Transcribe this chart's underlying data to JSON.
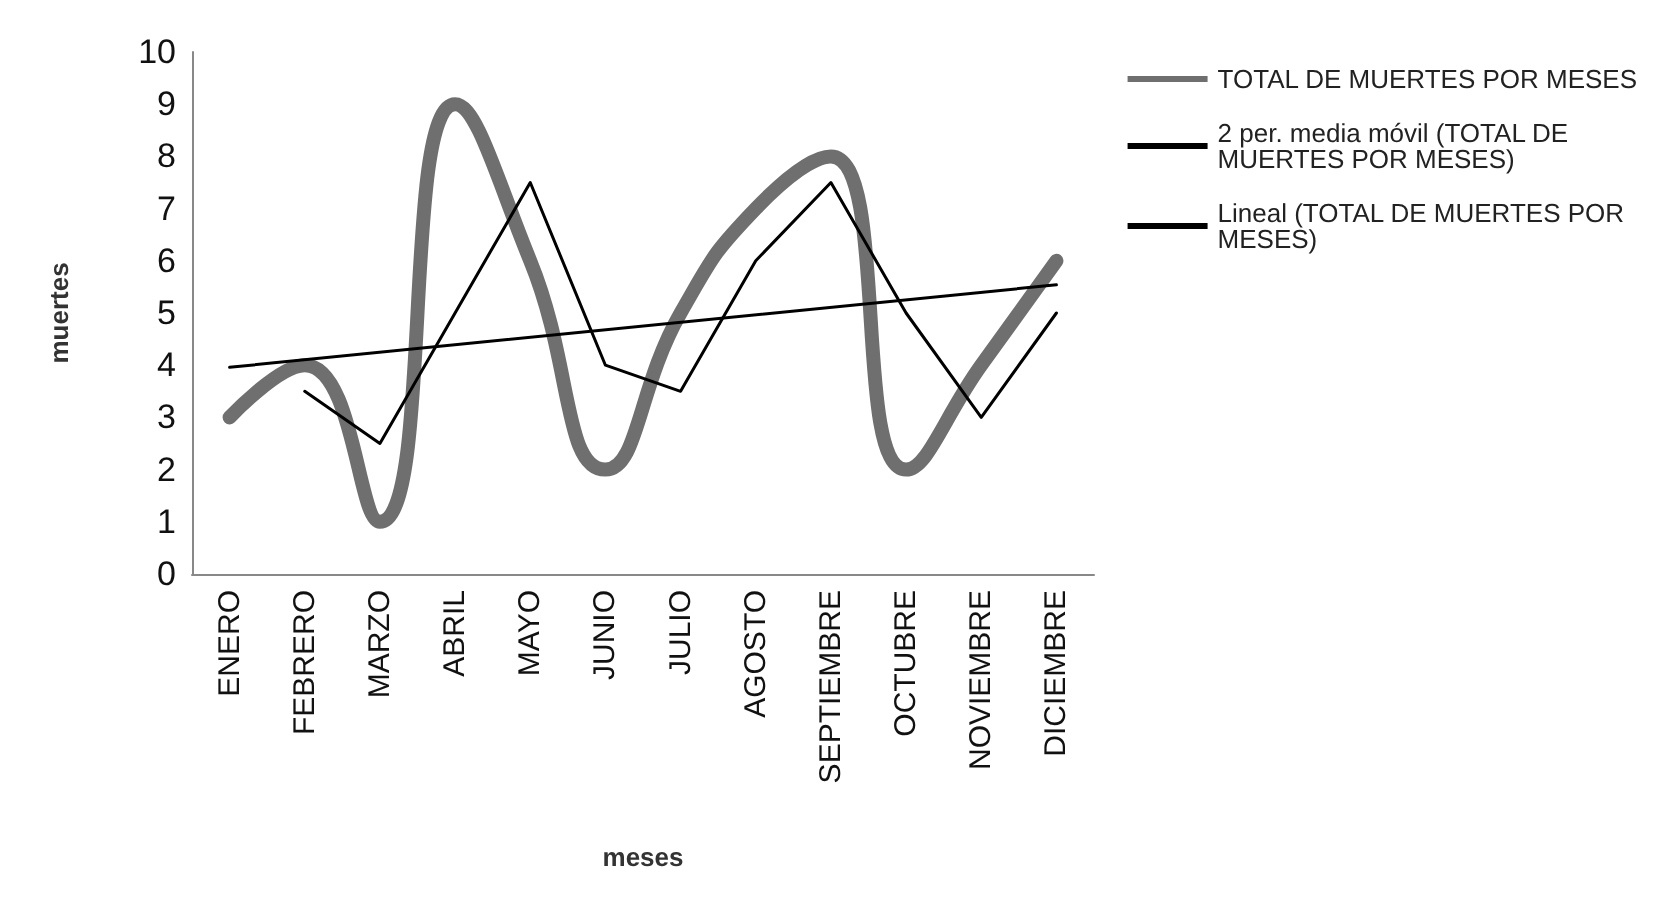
{
  "chart_data": {
    "type": "line",
    "xlabel": "meses",
    "ylabel": "muertes",
    "categories": [
      "ENERO",
      "FEBRERO",
      "MARZO",
      "ABRIL",
      "MAYO",
      "JUNIO",
      "JULIO",
      "AGOSTO",
      "SEPTIEMBRE",
      "OCTUBRE",
      "NOVIEMBRE",
      "DICIEMBRE"
    ],
    "series": [
      {
        "name": "TOTAL DE MUERTES POR MESES",
        "color": "#6f6f6f",
        "values": [
          3,
          4,
          1,
          9,
          6,
          2,
          5,
          7,
          8,
          2,
          4,
          6
        ]
      },
      {
        "name": "2 per. media móvil (TOTAL DE MUERTES POR MESES)",
        "color": "#000000",
        "values": [
          null,
          3.5,
          2.5,
          5,
          7.5,
          4,
          3.5,
          6,
          7.5,
          5,
          3,
          5
        ]
      },
      {
        "name": "Lineal (TOTAL DE MUERTES POR MESES)",
        "color": "#000000",
        "x": [
          "ENERO",
          "DICIEMBRE"
        ],
        "values": [
          3.96,
          5.54
        ]
      }
    ],
    "ylim": [
      0,
      10
    ],
    "yticks": [
      0,
      1,
      2,
      3,
      4,
      5,
      6,
      7,
      8,
      9,
      10
    ],
    "grid": false,
    "legend": "right",
    "marker": "none",
    "line_style": "solid"
  }
}
